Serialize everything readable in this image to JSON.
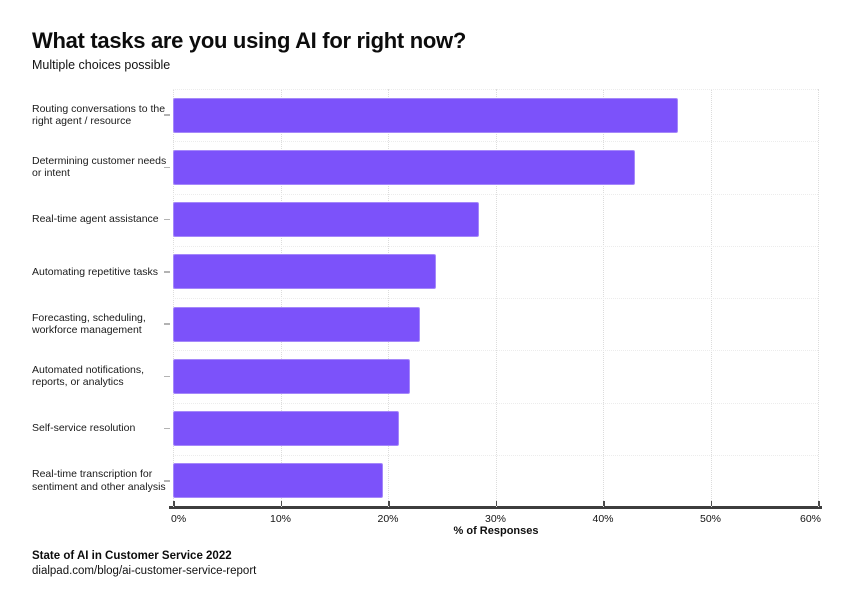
{
  "title": "What tasks are you using AI for right now?",
  "subtitle": "Multiple choices possible",
  "chart_data": {
    "type": "bar",
    "orientation": "horizontal",
    "title": "What tasks are you using AI for right now?",
    "subtitle": "Multiple choices possible",
    "categories": [
      "Routing conversations to the\nright agent / resource",
      "Determining customer needs\nor intent",
      "Real-time agent assistance",
      "Automating repetitive tasks",
      "Forecasting, scheduling,\nworkforce management",
      "Automated notifications,\nreports, or analytics",
      "Self-service resolution",
      "Real-time transcription for\nsentiment and other analysis"
    ],
    "values": [
      47,
      43,
      28.5,
      24.5,
      23,
      22,
      21,
      19.5
    ],
    "xlabel": "% of Responses",
    "ylabel": "",
    "xlim": [
      0,
      60
    ],
    "xtick_labels": [
      "0%",
      "10%",
      "20%",
      "30%",
      "40%",
      "50%",
      "60%"
    ],
    "grid": "vertical dotted gridlines at 10% steps, faint dotted row separators",
    "legend": "none",
    "bar_color": "#7C52FA",
    "bar_edge_color": "#A588FA",
    "axis_color": "#3d3d3d"
  },
  "footer": {
    "source": "State of AI in Customer Service 2022",
    "url": "dialpad.com/blog/ai-customer-service-report"
  }
}
